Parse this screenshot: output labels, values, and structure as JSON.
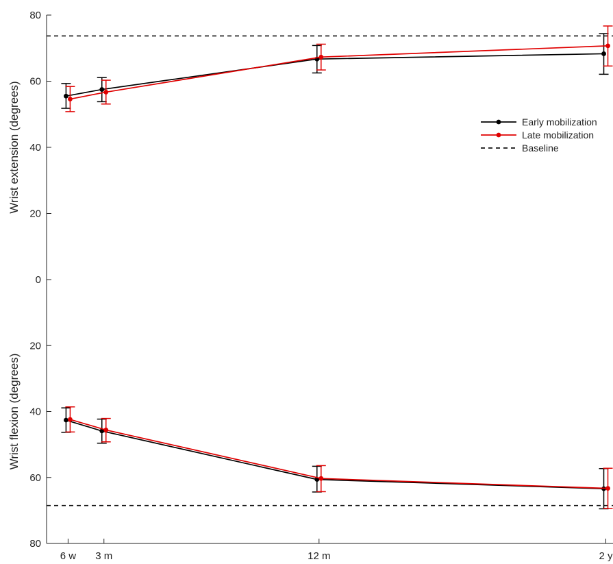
{
  "chart_data": {
    "type": "line",
    "categories": [
      "6 w",
      "3 m",
      "12 m",
      "2 y"
    ],
    "x_months": [
      1.5,
      3,
      12,
      24
    ],
    "y_ticks": [
      "80",
      "60",
      "40",
      "20",
      "0",
      "20",
      "40",
      "60",
      "80"
    ],
    "ylabel_top": "Wrist extension (degrees)",
    "ylabel_bottom": "Wrist flexion (degrees)",
    "extension": {
      "ylim": [
        0,
        80
      ],
      "series": [
        {
          "name": "Early mobilization",
          "color": "#000000",
          "values": [
            55.5,
            57.5,
            66.7,
            68.3
          ],
          "err_low": [
            51.8,
            53.8,
            62.5,
            62.1
          ],
          "err_high": [
            59.3,
            61.1,
            70.8,
            74.4
          ]
        },
        {
          "name": "Late mobilization",
          "color": "#e00000",
          "values": [
            54.6,
            56.7,
            67.3,
            70.7
          ],
          "err_low": [
            50.8,
            53.1,
            63.4,
            64.6
          ],
          "err_high": [
            58.4,
            60.3,
            71.2,
            76.7
          ]
        }
      ],
      "baseline": 73.7
    },
    "flexion": {
      "ylim": [
        0,
        80
      ],
      "series": [
        {
          "name": "Early mobilization",
          "color": "#000000",
          "values": [
            42.6,
            45.9,
            60.6,
            63.4
          ],
          "err_low": [
            38.9,
            42.3,
            56.6,
            57.3
          ],
          "err_high": [
            46.3,
            49.6,
            64.4,
            69.5
          ]
        },
        {
          "name": "Late mobilization",
          "color": "#e00000",
          "values": [
            42.4,
            45.6,
            60.3,
            63.3
          ],
          "err_low": [
            38.6,
            42.1,
            56.4,
            57.2
          ],
          "err_high": [
            46.2,
            49.2,
            64.3,
            69.4
          ]
        }
      ],
      "baseline": 68.5
    },
    "legend": {
      "placement": "right, upper",
      "entries": [
        "Early mobilization",
        "Late mobilization",
        "Baseline"
      ]
    },
    "grid": false
  }
}
